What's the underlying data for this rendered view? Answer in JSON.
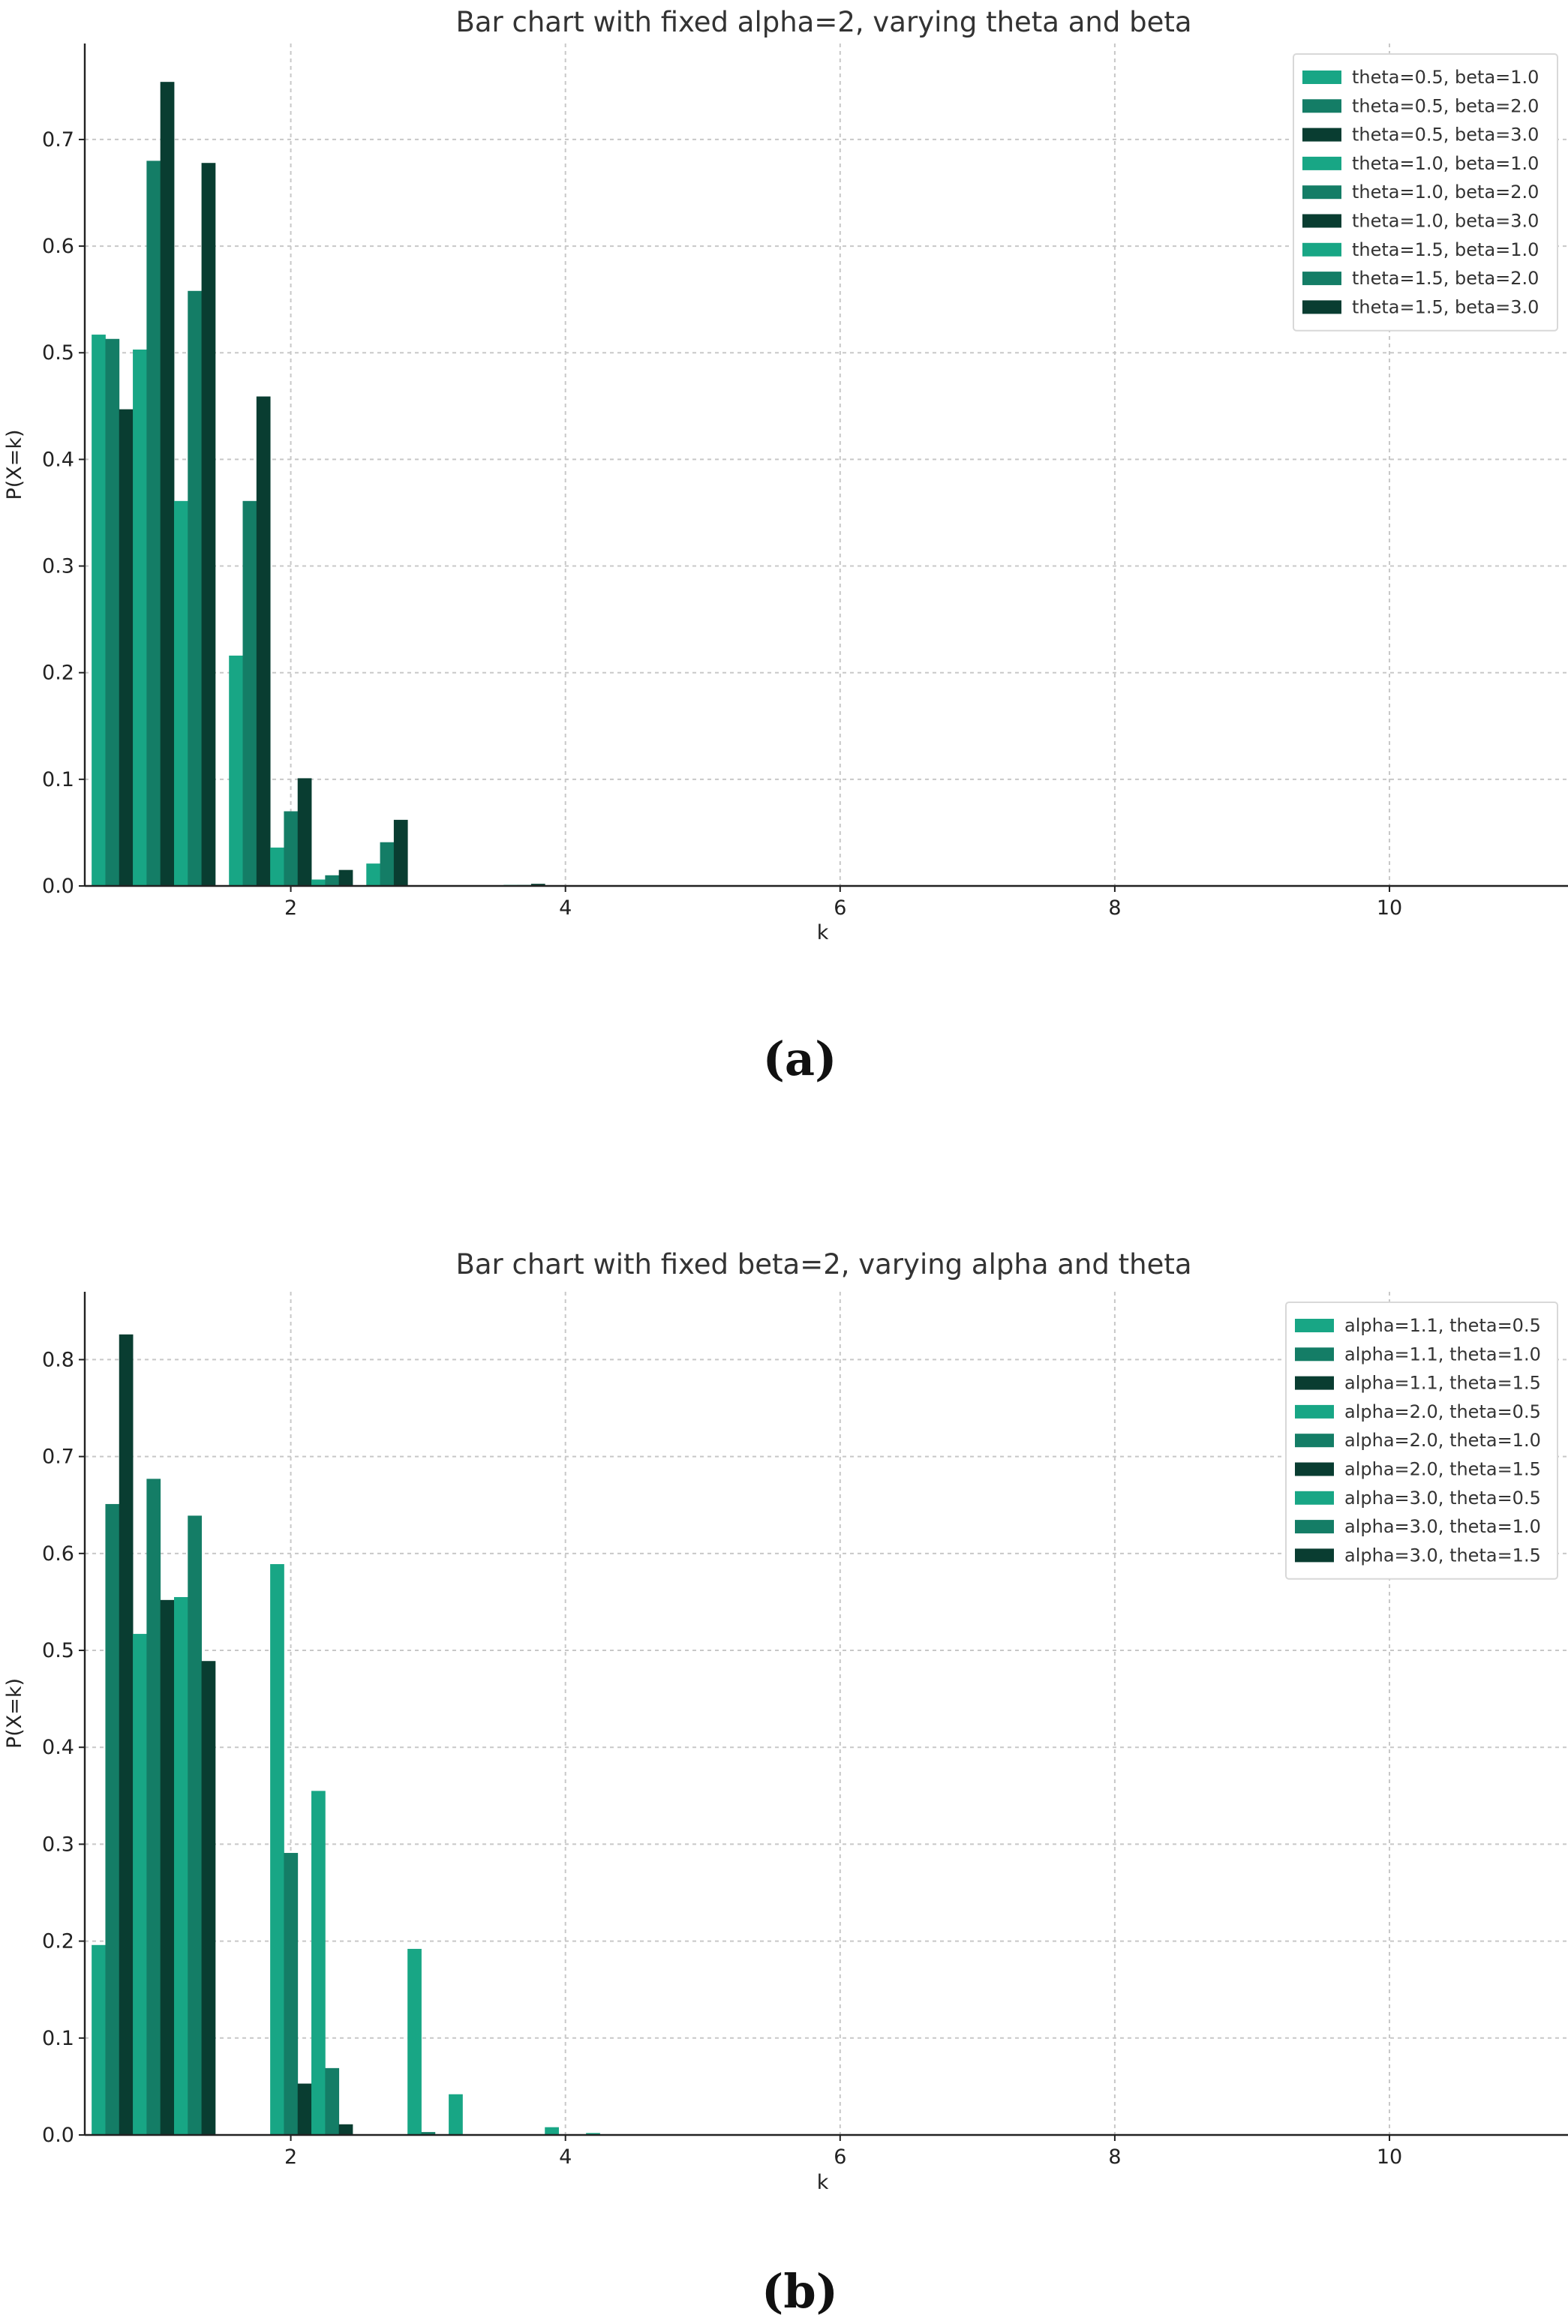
{
  "panels": {
    "a": {
      "label": "(a)"
    },
    "b": {
      "label": "(b)"
    }
  },
  "colors": [
    "#18a685",
    "#147d66",
    "#093d31"
  ],
  "chart_data": [
    {
      "type": "bar",
      "title": "Bar chart with fixed alpha=2, varying theta and beta",
      "xlabel": "k",
      "ylabel": "P(X=k)",
      "xlim": [
        0.5,
        11.3
      ],
      "ylim": [
        0,
        0.79
      ],
      "xticks": [
        2,
        4,
        6,
        8,
        10
      ],
      "yticks": [
        "0.0",
        "0.1",
        "0.2",
        "0.3",
        "0.4",
        "0.5",
        "0.6",
        "0.7"
      ],
      "grid": true,
      "legend_position": "top-right",
      "x": [
        1,
        2,
        3,
        4
      ],
      "bar_width": 0.1,
      "series": [
        {
          "name": "theta=0.5, beta=1.0",
          "values": [
            0.517,
            0.216,
            0.021,
            0.001
          ]
        },
        {
          "name": "theta=0.5, beta=2.0",
          "values": [
            0.513,
            0.361,
            0.041,
            0.001
          ]
        },
        {
          "name": "theta=0.5, beta=3.0",
          "values": [
            0.447,
            0.459,
            0.062,
            0.002
          ]
        },
        {
          "name": "theta=1.0, beta=1.0",
          "values": [
            0.503,
            0.036,
            0.0,
            0.0
          ]
        },
        {
          "name": "theta=1.0, beta=2.0",
          "values": [
            0.68,
            0.07,
            0.0,
            0.0
          ]
        },
        {
          "name": "theta=1.0, beta=3.0",
          "values": [
            0.754,
            0.101,
            0.0,
            0.0
          ]
        },
        {
          "name": "theta=1.5, beta=1.0",
          "values": [
            0.361,
            0.006,
            0.0,
            0.0
          ]
        },
        {
          "name": "theta=1.5, beta=2.0",
          "values": [
            0.558,
            0.01,
            0.0,
            0.0
          ]
        },
        {
          "name": "theta=1.5, beta=3.0",
          "values": [
            0.678,
            0.015,
            0.0,
            0.0
          ]
        }
      ]
    },
    {
      "type": "bar",
      "title": "Bar chart with fixed beta=2, varying alpha and theta",
      "xlabel": "k",
      "ylabel": "P(X=k)",
      "xlim": [
        0.5,
        11.3
      ],
      "ylim": [
        0,
        0.87
      ],
      "xticks": [
        2,
        4,
        6,
        8,
        10
      ],
      "yticks": [
        "0.0",
        "0.1",
        "0.2",
        "0.3",
        "0.4",
        "0.5",
        "0.6",
        "0.7",
        "0.8"
      ],
      "grid": true,
      "legend_position": "top-right",
      "x": [
        1,
        2,
        3,
        4
      ],
      "bar_width": 0.1,
      "series": [
        {
          "name": "alpha=1.1, theta=0.5",
          "values": [
            0.196,
            0.0,
            0.0,
            0.0
          ]
        },
        {
          "name": "alpha=1.1, theta=1.0",
          "values": [
            0.651,
            0.0,
            0.0,
            0.0
          ]
        },
        {
          "name": "alpha=1.1, theta=1.5",
          "values": [
            0.826,
            0.0,
            0.0,
            0.0
          ]
        },
        {
          "name": "alpha=2.0, theta=0.5",
          "values": [
            0.517,
            0.589,
            0.192,
            0.008
          ]
        },
        {
          "name": "alpha=2.0, theta=1.0",
          "values": [
            0.677,
            0.291,
            0.003,
            0.0
          ]
        },
        {
          "name": "alpha=2.0, theta=1.5",
          "values": [
            0.552,
            0.053,
            0.0,
            0.0
          ]
        },
        {
          "name": "alpha=3.0, theta=0.5",
          "values": [
            0.555,
            0.355,
            0.042,
            0.002
          ]
        },
        {
          "name": "alpha=3.0, theta=1.0",
          "values": [
            0.639,
            0.069,
            0.0,
            0.0
          ]
        },
        {
          "name": "alpha=3.0, theta=1.5",
          "values": [
            0.489,
            0.011,
            0.0,
            0.0
          ]
        }
      ]
    }
  ]
}
